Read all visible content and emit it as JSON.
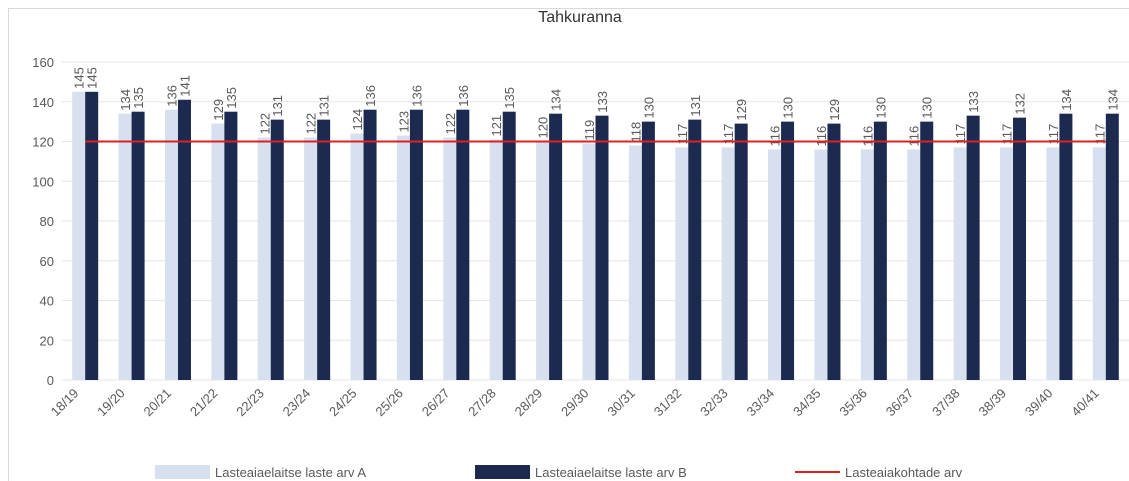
{
  "chart_data": {
    "type": "bar",
    "title": "Tahkuranna",
    "categories": [
      "18/19",
      "19/20",
      "20/21",
      "21/22",
      "22/23",
      "23/24",
      "24/25",
      "25/26",
      "26/27",
      "27/28",
      "28/29",
      "29/30",
      "30/31",
      "31/32",
      "32/33",
      "33/34",
      "34/35",
      "35/36",
      "36/37",
      "37/38",
      "38/39",
      "39/40",
      "40/41"
    ],
    "series": [
      {
        "name": "Lasteaiaelaitse laste arv A",
        "color": "#d6e0ef",
        "values": [
          145,
          134,
          136,
          129,
          122,
          122,
          124,
          123,
          122,
          121,
          120,
          119,
          118,
          117,
          117,
          116,
          116,
          116,
          116,
          117,
          117,
          117,
          117
        ]
      },
      {
        "name": "Lasteaiaelaitse laste arv B",
        "color": "#1b2a4e",
        "values": [
          145,
          135,
          141,
          135,
          131,
          131,
          136,
          136,
          136,
          135,
          134,
          133,
          130,
          131,
          129,
          130,
          129,
          130,
          130,
          133,
          132,
          134,
          134
        ]
      },
      {
        "name": "Lasteaiakohtade arv",
        "color": "#e02020",
        "type": "line",
        "values": [
          120,
          120,
          120,
          120,
          120,
          120,
          120,
          120,
          120,
          120,
          120,
          120,
          120,
          120,
          120,
          120,
          120,
          120,
          120,
          120,
          120,
          120,
          120
        ]
      }
    ],
    "ylim": [
      0,
      160
    ],
    "yticks": [
      0,
      20,
      40,
      60,
      80,
      100,
      120,
      140,
      160
    ],
    "grid": true,
    "legend": "bottom"
  }
}
